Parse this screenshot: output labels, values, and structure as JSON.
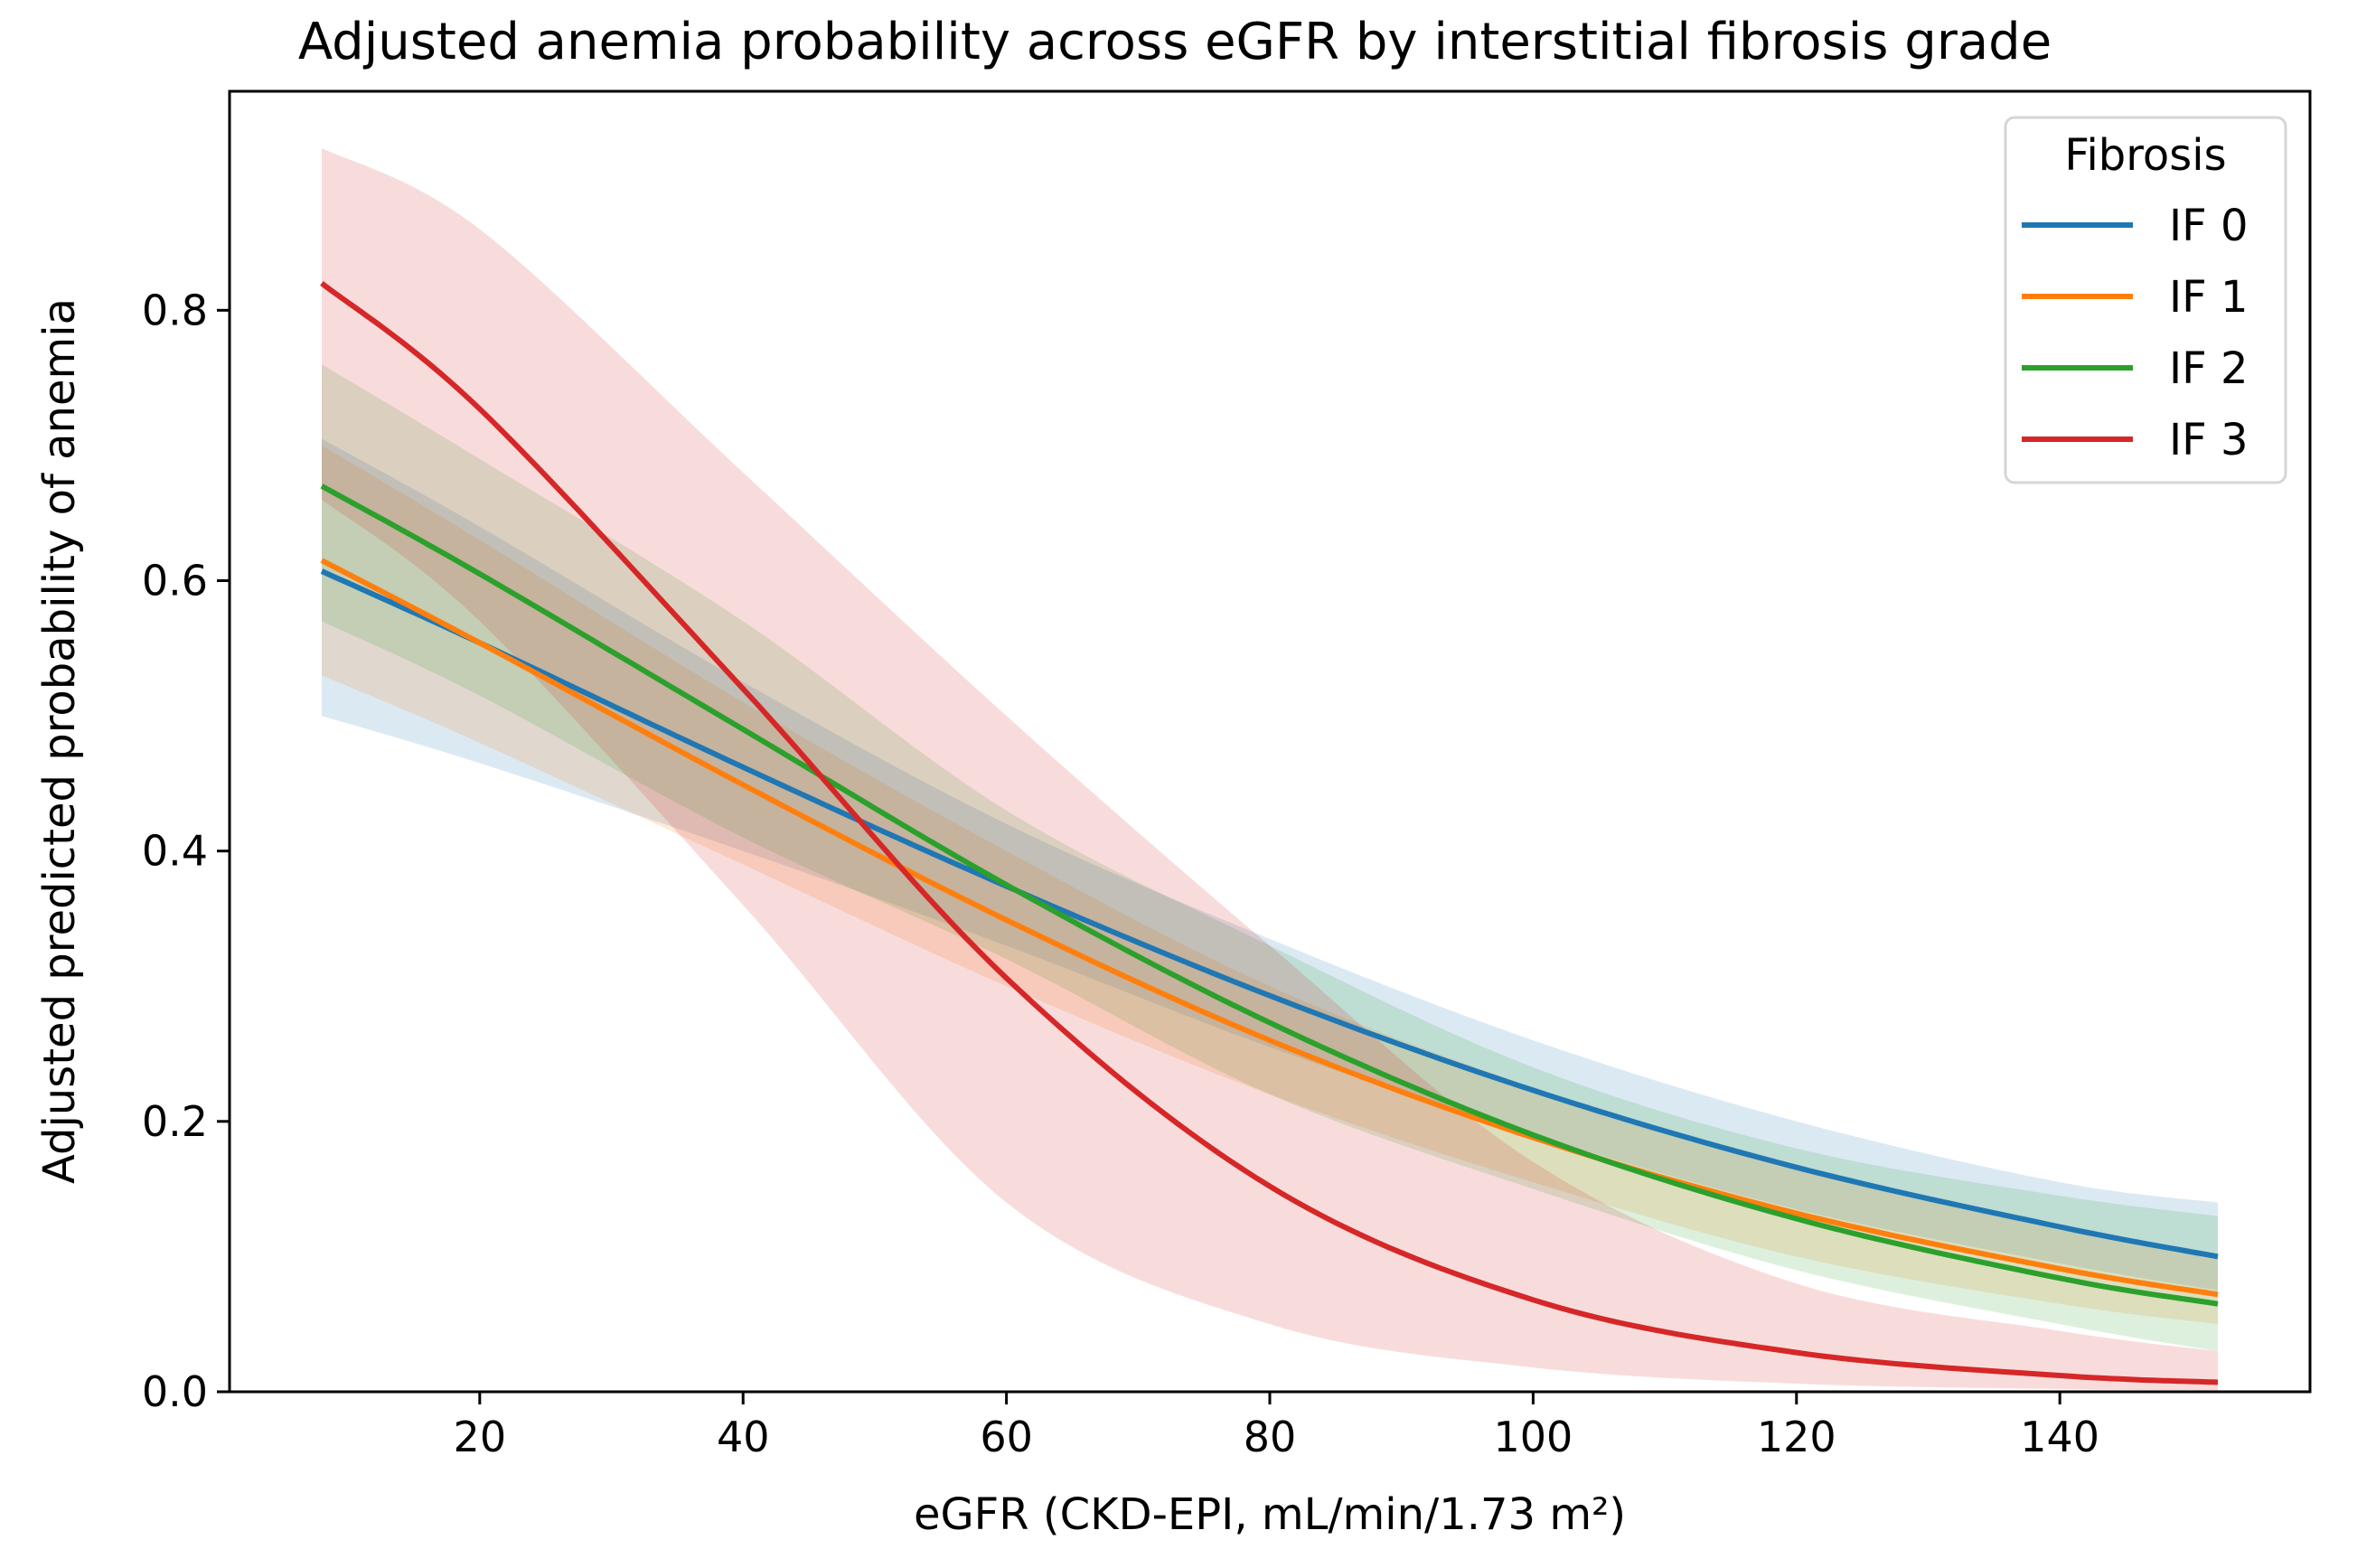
{
  "chart_data": {
    "type": "line",
    "title": "Adjusted anemia probability across eGFR by interstitial fibrosis grade",
    "xlabel": "eGFR (CKD-EPI, mL/min/1.73 m²)",
    "ylabel": "Adjusted predicted probability of anemia",
    "xlim": [
      1,
      159
    ],
    "ylim": [
      0,
      0.962
    ],
    "xticks": [
      20,
      40,
      60,
      80,
      100,
      120,
      140
    ],
    "xtick_labels": [
      "20",
      "40",
      "60",
      "80",
      "100",
      "120",
      "140"
    ],
    "yticks": [
      0,
      0.2,
      0.4,
      0.6,
      0.8
    ],
    "ytick_labels": [
      "0.0",
      "0.2",
      "0.4",
      "0.6",
      "0.8"
    ],
    "grid": false,
    "legend": {
      "title": "Fibrosis",
      "placement": "top-right"
    },
    "x": [
      8,
      20,
      40,
      60,
      80,
      100,
      120,
      140,
      152
    ],
    "series": [
      {
        "name": "IF 0",
        "color": "#1f77b4",
        "values": [
          0.607,
          0.554,
          0.462,
          0.374,
          0.293,
          0.223,
          0.166,
          0.122,
          0.1
        ],
        "lower": [
          0.5,
          0.465,
          0.4,
          0.33,
          0.255,
          0.19,
          0.135,
          0.095,
          0.075
        ],
        "upper": [
          0.705,
          0.64,
          0.525,
          0.42,
          0.335,
          0.26,
          0.2,
          0.155,
          0.14
        ]
      },
      {
        "name": "IF 1",
        "color": "#ff7f0e",
        "values": [
          0.615,
          0.554,
          0.449,
          0.349,
          0.26,
          0.188,
          0.132,
          0.091,
          0.072
        ],
        "lower": [
          0.53,
          0.48,
          0.39,
          0.3,
          0.22,
          0.155,
          0.1,
          0.065,
          0.05
        ],
        "upper": [
          0.7,
          0.63,
          0.51,
          0.4,
          0.3,
          0.225,
          0.165,
          0.12,
          0.1
        ]
      },
      {
        "name": "IF 2",
        "color": "#2ca02c",
        "values": [
          0.67,
          0.605,
          0.49,
          0.375,
          0.273,
          0.19,
          0.128,
          0.084,
          0.065
        ],
        "lower": [
          0.57,
          0.515,
          0.41,
          0.32,
          0.22,
          0.15,
          0.09,
          0.05,
          0.03
        ],
        "upper": [
          0.76,
          0.69,
          0.57,
          0.43,
          0.33,
          0.24,
          0.18,
          0.145,
          0.13
        ]
      },
      {
        "name": "IF 3",
        "color": "#d62728",
        "values": [
          0.82,
          0.727,
          0.52,
          0.306,
          0.152,
          0.068,
          0.029,
          0.012,
          0.007
        ],
        "lower": [
          0.66,
          0.57,
          0.36,
          0.14,
          0.05,
          0.018,
          0.006,
          0.002,
          0.001
        ],
        "upper": [
          0.92,
          0.86,
          0.68,
          0.5,
          0.33,
          0.17,
          0.08,
          0.045,
          0.03
        ]
      }
    ]
  }
}
